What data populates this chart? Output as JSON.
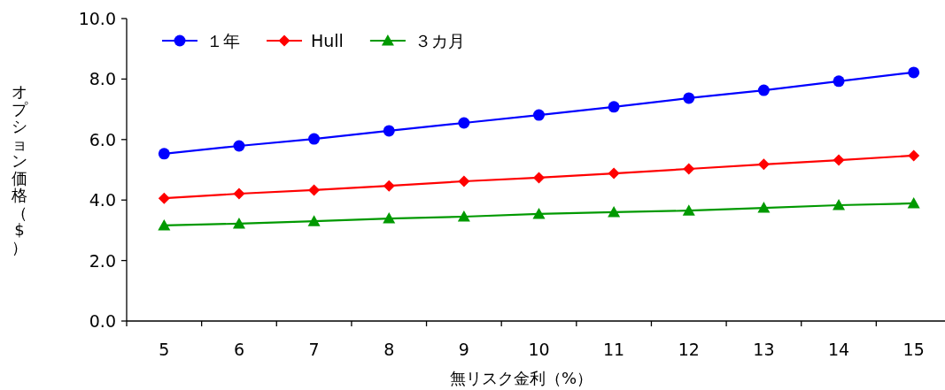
{
  "chart_data": {
    "type": "line",
    "xlabel": "無リスク金利（%）",
    "ylabel": "オプション価格（$）",
    "categories": [
      "5",
      "6",
      "7",
      "8",
      "9",
      "10",
      "11",
      "12",
      "13",
      "14",
      "15"
    ],
    "ylim": [
      0,
      10
    ],
    "yticks": [
      {
        "value": 0,
        "label": "0.0"
      },
      {
        "value": 2,
        "label": "2.0"
      },
      {
        "value": 4,
        "label": "4.0"
      },
      {
        "value": 6,
        "label": "6.0"
      },
      {
        "value": 8,
        "label": "8.0"
      },
      {
        "value": 10,
        "label": "10.0"
      }
    ],
    "grid": false,
    "legend": "top left",
    "line_style": "solid",
    "series": [
      {
        "name": "１年",
        "color": "#0000ff",
        "marker": "circle",
        "values": [
          5.53,
          5.79,
          6.02,
          6.29,
          6.55,
          6.81,
          7.08,
          7.37,
          7.63,
          7.93,
          8.22
        ]
      },
      {
        "name": "Hull",
        "color": "#ff0000",
        "marker": "diamond",
        "values": [
          4.06,
          4.21,
          4.33,
          4.47,
          4.62,
          4.74,
          4.88,
          5.03,
          5.18,
          5.32,
          5.47
        ]
      },
      {
        "name": "３カ月",
        "color": "#009900",
        "marker": "triangle",
        "values": [
          3.16,
          3.22,
          3.3,
          3.39,
          3.45,
          3.54,
          3.6,
          3.65,
          3.74,
          3.83,
          3.89
        ]
      }
    ]
  }
}
